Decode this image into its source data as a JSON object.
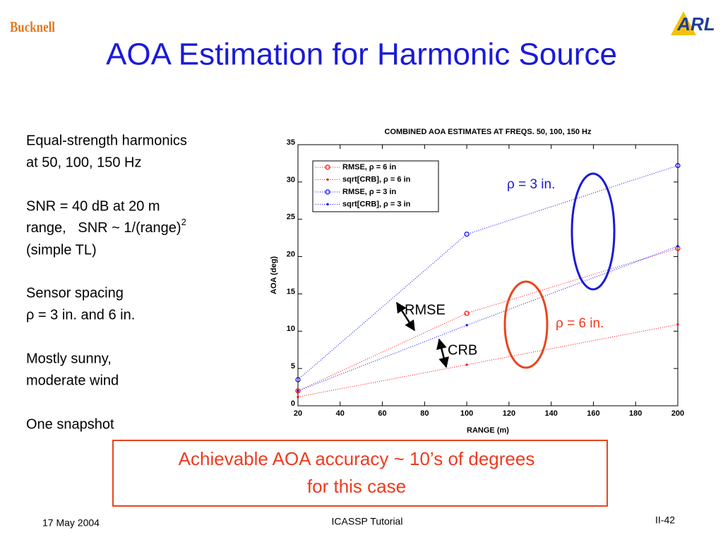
{
  "header": {
    "logo_left": "Bucknell",
    "logo_right": "ARL",
    "title": "AOA Estimation for Harmonic Source"
  },
  "bullets": [
    {
      "lines": [
        "Equal-strength harmonics",
        "at 50, 100, 150 Hz"
      ]
    },
    {
      "lines": [
        "SNR = 40 dB at 20 m",
        "range,   SNR ~ 1/(range)",
        "(simple TL)"
      ],
      "superscript": "2"
    },
    {
      "lines": [
        "Sensor spacing",
        "ρ = 3 in. and 6 in."
      ]
    },
    {
      "lines": [
        "Mostly sunny,",
        "moderate wind"
      ]
    },
    {
      "lines": [
        "One snapshot"
      ]
    }
  ],
  "callout": [
    "Achievable AOA accuracy ~ 10’s of degrees",
    "for this case"
  ],
  "footer": {
    "date": "17 May 2004",
    "center": "ICASSP Tutorial",
    "page": "II-42"
  },
  "chart_data": {
    "type": "line",
    "title": "COMBINED AOA ESTIMATES AT FREQS. 50, 100, 150 Hz",
    "xlabel": "RANGE (m)",
    "ylabel": "AOA (deg)",
    "x": [
      20,
      100,
      200
    ],
    "series": [
      {
        "name": "RMSE, ρ = 6 in",
        "color": "#ff0000",
        "marker": "circle",
        "values": [
          2,
          12.4,
          21.1
        ]
      },
      {
        "name": "sqrt[CRB], ρ = 6 in",
        "color": "#ff0000",
        "marker": "dot",
        "values": [
          1.2,
          5.5,
          10.9
        ]
      },
      {
        "name": "RMSE, ρ = 3 in",
        "color": "#0000ff",
        "marker": "circle",
        "values": [
          3.5,
          23,
          32.2
        ]
      },
      {
        "name": "sqrt[CRB], ρ = 3 in",
        "color": "#0000ff",
        "marker": "dot",
        "values": [
          2,
          10.8,
          21.4
        ]
      }
    ],
    "xlim": [
      20,
      200
    ],
    "xticks": [
      20,
      40,
      60,
      80,
      100,
      120,
      140,
      160,
      180,
      200
    ],
    "ylim": [
      0,
      35
    ],
    "yticks": [
      0,
      5,
      10,
      15,
      20,
      25,
      30,
      35
    ],
    "legend": "upper left",
    "annotations": [
      "ρ = 3 in.",
      "ρ = 6 in.",
      "RMSE",
      "CRB"
    ]
  }
}
